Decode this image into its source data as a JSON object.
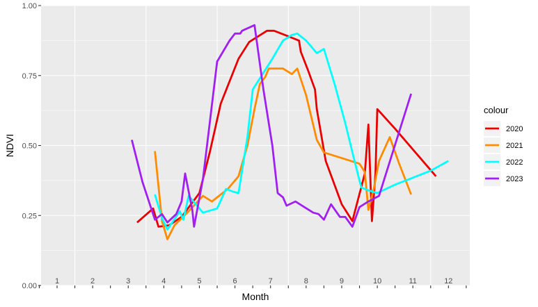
{
  "chart_data": {
    "type": "line",
    "xlabel": "Month",
    "ylabel": "NDVI",
    "ylim": [
      0,
      1
    ],
    "yticks": [
      "0.00",
      "0.25",
      "0.50",
      "0.75",
      "1.00"
    ],
    "xticks": [
      "1",
      "2",
      "3",
      "4",
      "5",
      "6",
      "7",
      "8",
      "9",
      "10",
      "11",
      "12"
    ],
    "grid": true,
    "legend": {
      "title": "colour",
      "position": "right"
    },
    "series": [
      {
        "name": "2020",
        "color": "#e80000",
        "points": [
          [
            3.25,
            0.225
          ],
          [
            3.7,
            0.275
          ],
          [
            3.85,
            0.21
          ],
          [
            4.15,
            0.215
          ],
          [
            4.5,
            0.245
          ],
          [
            5.0,
            0.33
          ],
          [
            5.3,
            0.48
          ],
          [
            5.6,
            0.65
          ],
          [
            6.1,
            0.81
          ],
          [
            6.4,
            0.87
          ],
          [
            6.9,
            0.91
          ],
          [
            7.1,
            0.91
          ],
          [
            7.5,
            0.89
          ],
          [
            7.8,
            0.875
          ],
          [
            7.85,
            0.835
          ],
          [
            8.05,
            0.77
          ],
          [
            8.25,
            0.7
          ],
          [
            8.3,
            0.63
          ],
          [
            8.55,
            0.445
          ],
          [
            9.0,
            0.29
          ],
          [
            9.3,
            0.23
          ],
          [
            9.65,
            0.4
          ],
          [
            9.75,
            0.575
          ],
          [
            9.85,
            0.23
          ],
          [
            9.95,
            0.4
          ],
          [
            10.0,
            0.63
          ],
          [
            10.5,
            0.56
          ],
          [
            11.65,
            0.39
          ]
        ]
      },
      {
        "name": "2021",
        "color": "#ff8c00",
        "points": [
          [
            3.75,
            0.48
          ],
          [
            3.95,
            0.23
          ],
          [
            4.1,
            0.165
          ],
          [
            4.3,
            0.215
          ],
          [
            4.7,
            0.265
          ],
          [
            5.1,
            0.32
          ],
          [
            5.35,
            0.3
          ],
          [
            5.8,
            0.345
          ],
          [
            6.1,
            0.39
          ],
          [
            6.35,
            0.5
          ],
          [
            6.55,
            0.63
          ],
          [
            6.7,
            0.72
          ],
          [
            6.85,
            0.745
          ],
          [
            6.95,
            0.775
          ],
          [
            7.35,
            0.775
          ],
          [
            7.6,
            0.755
          ],
          [
            7.75,
            0.775
          ],
          [
            8.0,
            0.68
          ],
          [
            8.3,
            0.52
          ],
          [
            8.5,
            0.475
          ],
          [
            9.0,
            0.455
          ],
          [
            9.5,
            0.435
          ],
          [
            9.65,
            0.405
          ],
          [
            9.75,
            0.27
          ],
          [
            9.9,
            0.345
          ],
          [
            10.05,
            0.445
          ],
          [
            10.35,
            0.53
          ],
          [
            10.6,
            0.44
          ],
          [
            10.95,
            0.325
          ]
        ]
      },
      {
        "name": "2022",
        "color": "#00ffff",
        "points": [
          [
            3.75,
            0.325
          ],
          [
            3.95,
            0.24
          ],
          [
            4.1,
            0.2
          ],
          [
            4.45,
            0.265
          ],
          [
            4.55,
            0.235
          ],
          [
            4.7,
            0.32
          ],
          [
            5.1,
            0.26
          ],
          [
            5.5,
            0.275
          ],
          [
            5.75,
            0.345
          ],
          [
            5.95,
            0.335
          ],
          [
            6.1,
            0.33
          ],
          [
            6.35,
            0.53
          ],
          [
            6.5,
            0.7
          ],
          [
            6.6,
            0.72
          ],
          [
            6.85,
            0.77
          ],
          [
            7.05,
            0.81
          ],
          [
            7.35,
            0.875
          ],
          [
            7.6,
            0.895
          ],
          [
            7.75,
            0.9
          ],
          [
            8.0,
            0.875
          ],
          [
            8.3,
            0.83
          ],
          [
            8.5,
            0.845
          ],
          [
            8.8,
            0.72
          ],
          [
            9.1,
            0.58
          ],
          [
            9.35,
            0.45
          ],
          [
            9.55,
            0.35
          ],
          [
            9.75,
            0.34
          ],
          [
            10.0,
            0.33
          ],
          [
            10.5,
            0.36
          ],
          [
            11.5,
            0.41
          ],
          [
            12.0,
            0.445
          ]
        ]
      },
      {
        "name": "2023",
        "color": "#a020f0",
        "points": [
          [
            3.1,
            0.52
          ],
          [
            3.4,
            0.37
          ],
          [
            3.75,
            0.235
          ],
          [
            3.95,
            0.255
          ],
          [
            4.1,
            0.225
          ],
          [
            4.35,
            0.255
          ],
          [
            4.5,
            0.3
          ],
          [
            4.6,
            0.4
          ],
          [
            4.8,
            0.27
          ],
          [
            4.85,
            0.21
          ],
          [
            5.1,
            0.38
          ],
          [
            5.5,
            0.8
          ],
          [
            5.85,
            0.875
          ],
          [
            6.0,
            0.9
          ],
          [
            6.15,
            0.9
          ],
          [
            6.2,
            0.91
          ],
          [
            6.55,
            0.93
          ],
          [
            6.8,
            0.7
          ],
          [
            7.05,
            0.5
          ],
          [
            7.2,
            0.33
          ],
          [
            7.35,
            0.315
          ],
          [
            7.45,
            0.285
          ],
          [
            7.7,
            0.3
          ],
          [
            7.95,
            0.28
          ],
          [
            8.2,
            0.26
          ],
          [
            8.35,
            0.255
          ],
          [
            8.5,
            0.235
          ],
          [
            8.7,
            0.29
          ],
          [
            8.95,
            0.245
          ],
          [
            9.1,
            0.245
          ],
          [
            9.3,
            0.21
          ],
          [
            9.5,
            0.28
          ],
          [
            9.75,
            0.3
          ],
          [
            10.05,
            0.32
          ],
          [
            10.95,
            0.685
          ]
        ]
      }
    ]
  }
}
